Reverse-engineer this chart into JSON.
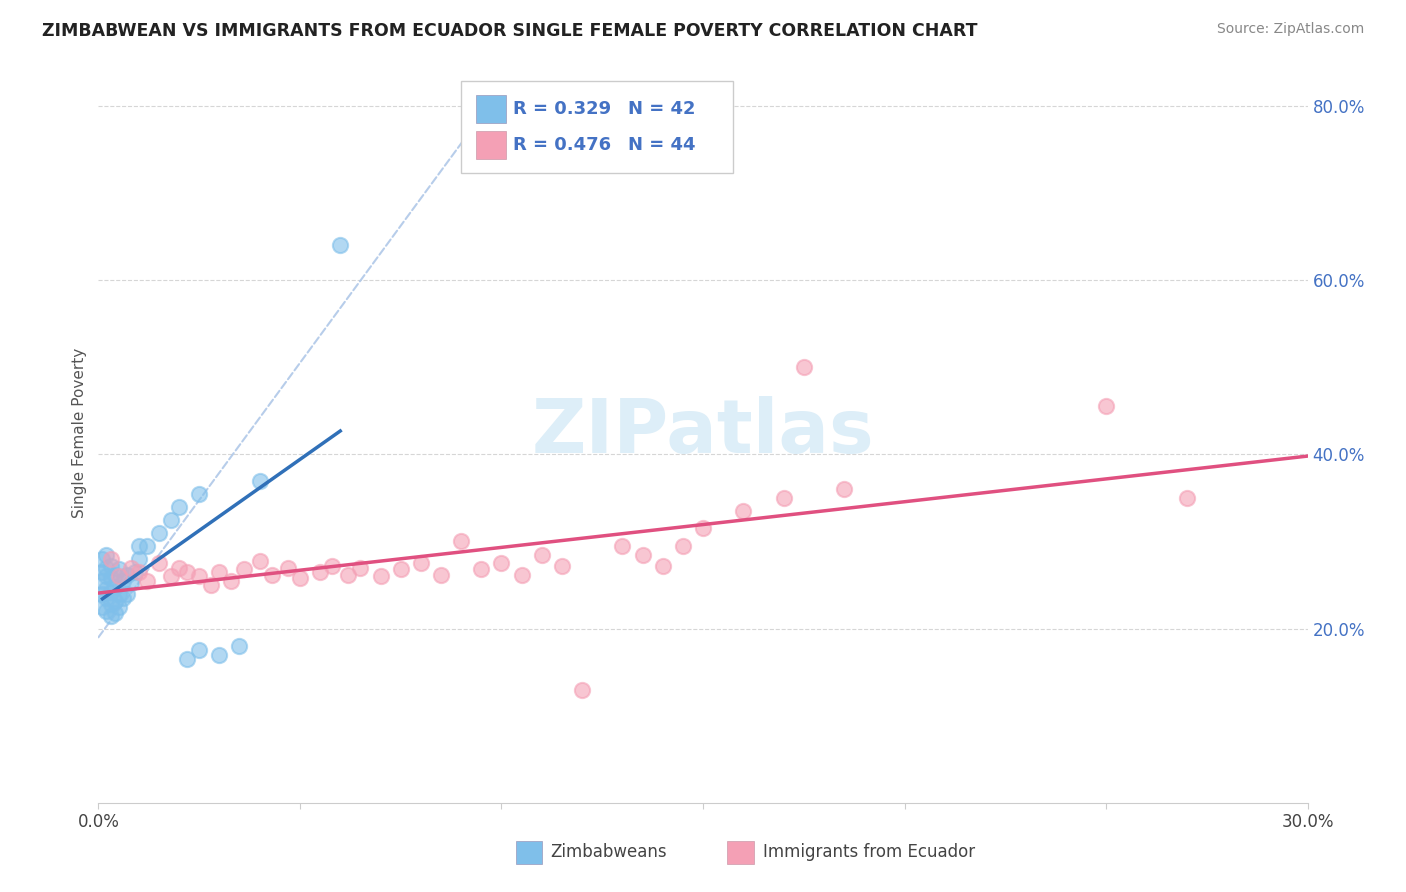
{
  "title": "ZIMBABWEAN VS IMMIGRANTS FROM ECUADOR SINGLE FEMALE POVERTY CORRELATION CHART",
  "source": "Source: ZipAtlas.com",
  "ylabel": "Single Female Poverty",
  "xlim": [
    0.0,
    0.3
  ],
  "ylim": [
    0.0,
    0.85
  ],
  "color_blue": "#7fbfea",
  "color_pink": "#f4a0b5",
  "color_blue_line": "#3070b8",
  "color_pink_line": "#e05080",
  "color_dashed": "#b0c8e8",
  "watermark_color": "#ddeef8",
  "zimbabwe_x": [
    0.001,
    0.001,
    0.001,
    0.001,
    0.001,
    0.002,
    0.002,
    0.002,
    0.002,
    0.002,
    0.002,
    0.003,
    0.003,
    0.003,
    0.003,
    0.003,
    0.004,
    0.004,
    0.004,
    0.004,
    0.005,
    0.005,
    0.005,
    0.006,
    0.006,
    0.007,
    0.007,
    0.008,
    0.009,
    0.01,
    0.01,
    0.012,
    0.015,
    0.018,
    0.02,
    0.022,
    0.025,
    0.025,
    0.03,
    0.035,
    0.04,
    0.06
  ],
  "zimbabwe_y": [
    0.225,
    0.24,
    0.255,
    0.265,
    0.28,
    0.22,
    0.235,
    0.245,
    0.26,
    0.27,
    0.285,
    0.215,
    0.228,
    0.242,
    0.258,
    0.272,
    0.218,
    0.232,
    0.248,
    0.262,
    0.225,
    0.24,
    0.268,
    0.235,
    0.255,
    0.24,
    0.262,
    0.252,
    0.265,
    0.28,
    0.295,
    0.295,
    0.31,
    0.325,
    0.34,
    0.165,
    0.175,
    0.355,
    0.17,
    0.18,
    0.37,
    0.64
  ],
  "ecuador_x": [
    0.003,
    0.005,
    0.008,
    0.01,
    0.012,
    0.015,
    0.018,
    0.02,
    0.022,
    0.025,
    0.028,
    0.03,
    0.033,
    0.036,
    0.04,
    0.043,
    0.047,
    0.05,
    0.055,
    0.058,
    0.062,
    0.065,
    0.07,
    0.075,
    0.08,
    0.085,
    0.09,
    0.095,
    0.1,
    0.105,
    0.11,
    0.115,
    0.12,
    0.13,
    0.135,
    0.14,
    0.145,
    0.15,
    0.16,
    0.17,
    0.175,
    0.185,
    0.25,
    0.27
  ],
  "ecuador_y": [
    0.28,
    0.26,
    0.27,
    0.265,
    0.255,
    0.275,
    0.26,
    0.27,
    0.265,
    0.26,
    0.25,
    0.265,
    0.255,
    0.268,
    0.278,
    0.262,
    0.27,
    0.258,
    0.265,
    0.272,
    0.262,
    0.27,
    0.26,
    0.268,
    0.275,
    0.262,
    0.3,
    0.268,
    0.275,
    0.262,
    0.285,
    0.272,
    0.13,
    0.295,
    0.285,
    0.272,
    0.295,
    0.315,
    0.335,
    0.35,
    0.5,
    0.36,
    0.455,
    0.35
  ]
}
